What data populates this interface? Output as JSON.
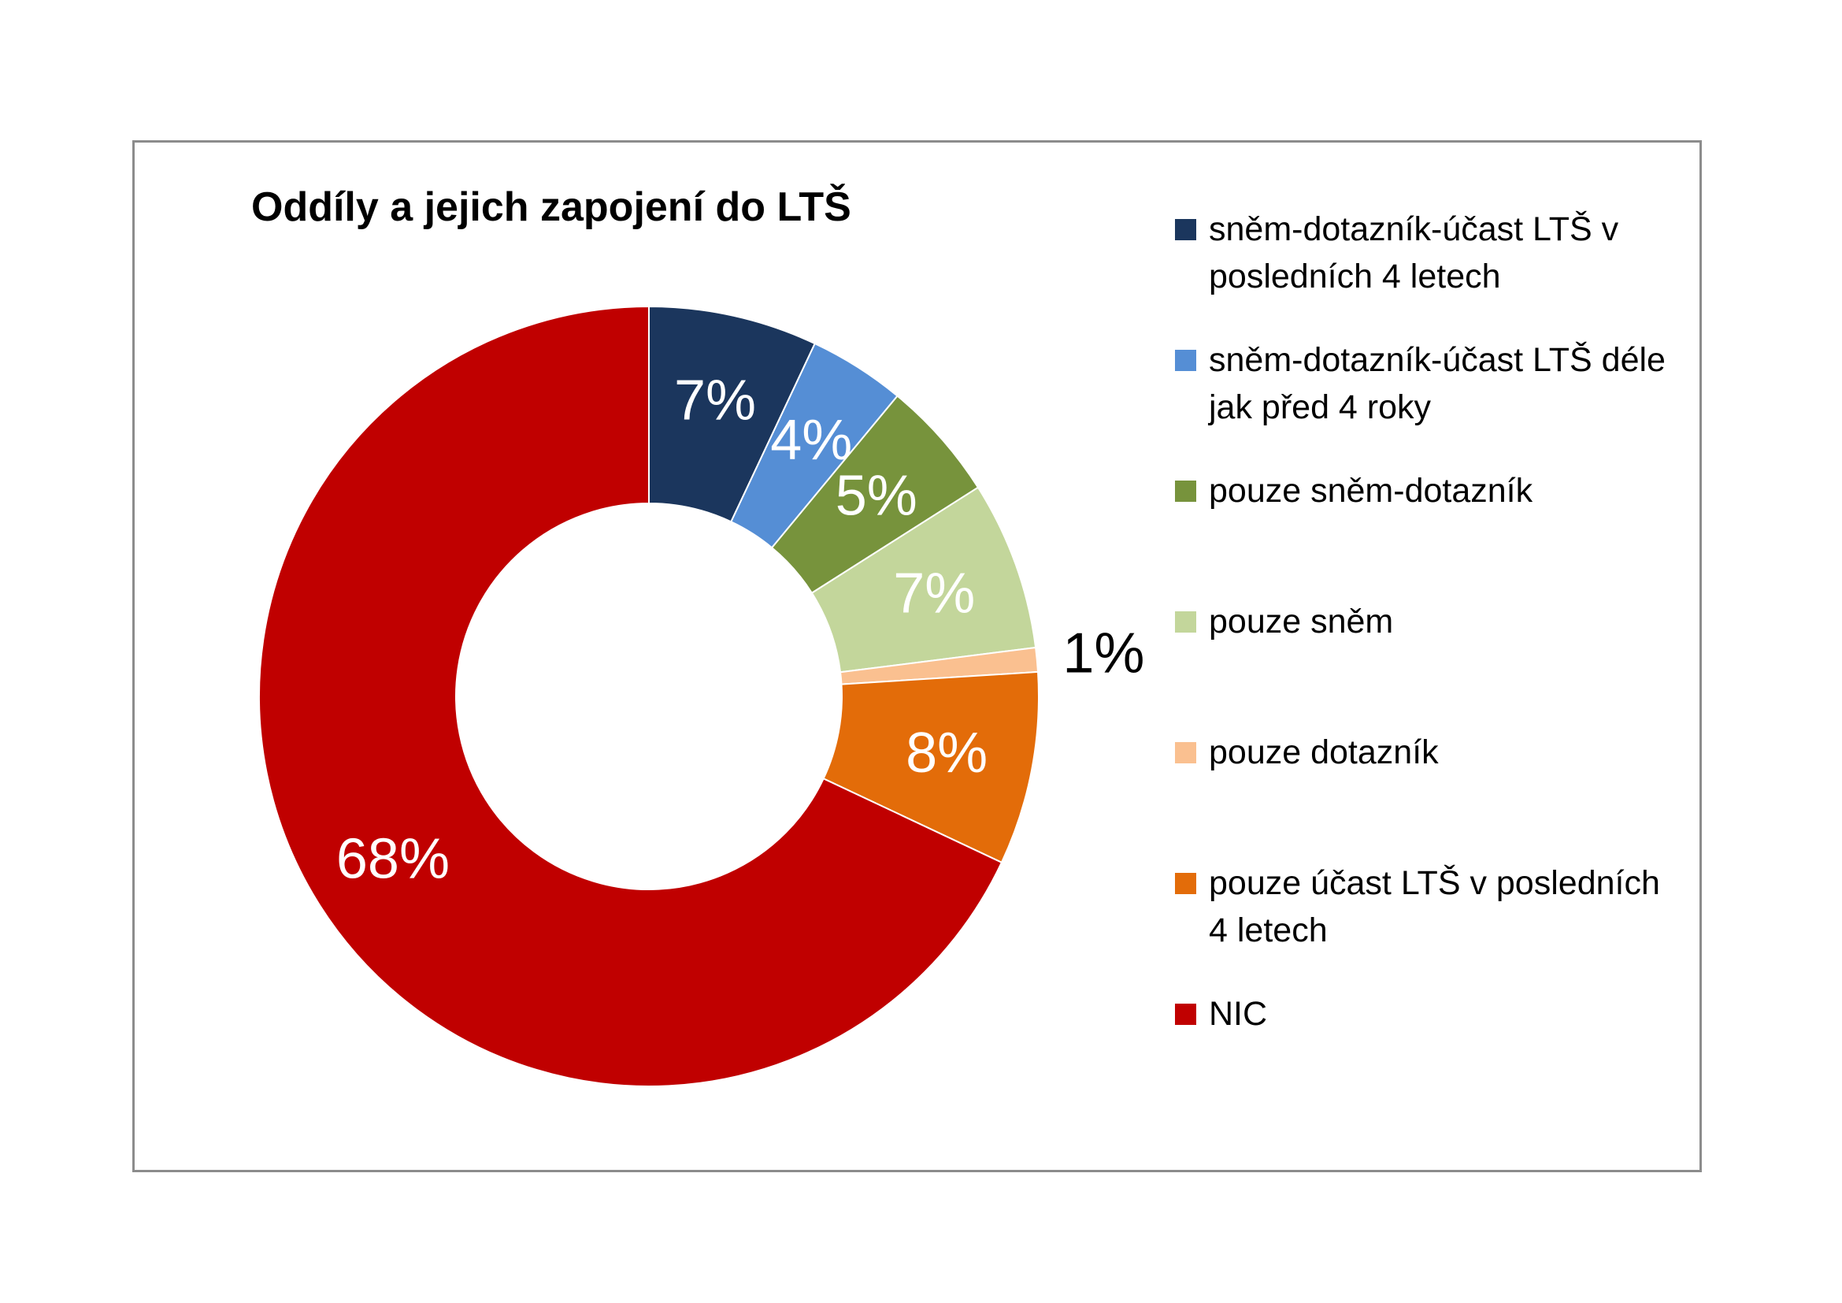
{
  "chart_data": {
    "type": "pie",
    "subtype": "donut",
    "title": "Oddíly a jejich zapojení do LTŠ",
    "legend_position": "right",
    "slices": [
      {
        "label": "sněm-dotazník-účast LTŠ v posledních 4 letech",
        "value": 7,
        "display": "7%",
        "color": "#1b365d",
        "label_color": "#ffffff"
      },
      {
        "label": "sněm-dotazník-účast LTŠ déle jak před 4 roky",
        "value": 4,
        "display": "4%",
        "color": "#558ed5",
        "label_color": "#ffffff"
      },
      {
        "label": "pouze sněm-dotazník",
        "value": 5,
        "display": "5%",
        "color": "#77933c",
        "label_color": "#ffffff"
      },
      {
        "label": "pouze sněm",
        "value": 7,
        "display": "7%",
        "color": "#c3d69b",
        "label_color": "#ffffff"
      },
      {
        "label": "pouze dotazník",
        "value": 1,
        "display": "1%",
        "color": "#fac090",
        "label_color": "#000000"
      },
      {
        "label": "pouze účast LTŠ v posledních 4 letech",
        "value": 8,
        "display": "8%",
        "color": "#e36c09",
        "label_color": "#ffffff"
      },
      {
        "label": "NIC",
        "value": 68,
        "display": "68%",
        "color": "#c00000",
        "label_color": "#ffffff"
      }
    ]
  }
}
